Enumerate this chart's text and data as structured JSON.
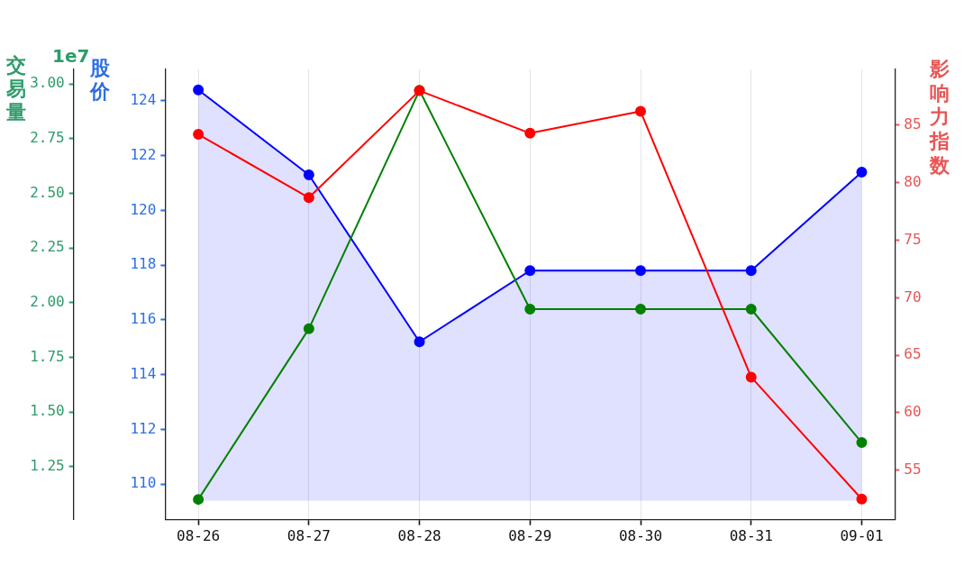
{
  "chart_data": {
    "type": "line",
    "categories": [
      "08-26",
      "08-27",
      "08-28",
      "08-29",
      "08-30",
      "08-31",
      "09-01"
    ],
    "series": [
      {
        "color": "#0000ff",
        "values": [
          124.4,
          121.3,
          115.2,
          117.8,
          117.8,
          117.8,
          121.4
        ],
        "lower": [
          109.4,
          109.4,
          109.4,
          109.4,
          109.4,
          109.4,
          109.4
        ],
        "upper": [
          124.4,
          121.3,
          115.2,
          117.8,
          117.8,
          117.8,
          121.4
        ]
      },
      {
        "color": "#008000",
        "axis": "y3",
        "values": [
          1.1,
          1.88,
          2.97,
          1.97,
          1.97,
          1.97,
          1.36
        ]
      },
      {
        "color": "#ff0000",
        "axis": "y2",
        "values": [
          84.2,
          78.7,
          88.0,
          84.3,
          86.2,
          63.1,
          52.5
        ]
      }
    ],
    "ylabel": "股价",
    "y2label": "影响力指数",
    "y3label": "交易量",
    "ylim": [
      108.7,
      125.15
    ],
    "yticks": [
      110,
      112,
      114,
      116,
      118,
      120,
      122,
      124
    ],
    "y2lim": [
      50.7,
      89.85
    ],
    "y2ticks": [
      55,
      60,
      65,
      70,
      75,
      80,
      85
    ],
    "y3lim": [
      1.007,
      3.066
    ],
    "y3ticks": [
      {
        "value": 1.25,
        "label": "1.25"
      },
      {
        "value": 1.5,
        "label": "1.50"
      },
      {
        "value": 1.75,
        "label": "1.75"
      },
      {
        "value": 2,
        "label": "2.00"
      },
      {
        "value": 2.25,
        "label": "2.25"
      },
      {
        "value": 2.5,
        "label": "2.50"
      },
      {
        "value": 2.75,
        "label": "2.75"
      },
      {
        "value": 3,
        "label": "3.00"
      }
    ],
    "annotations": [
      "1e7"
    ],
    "grid": "x",
    "marker": "circle"
  }
}
